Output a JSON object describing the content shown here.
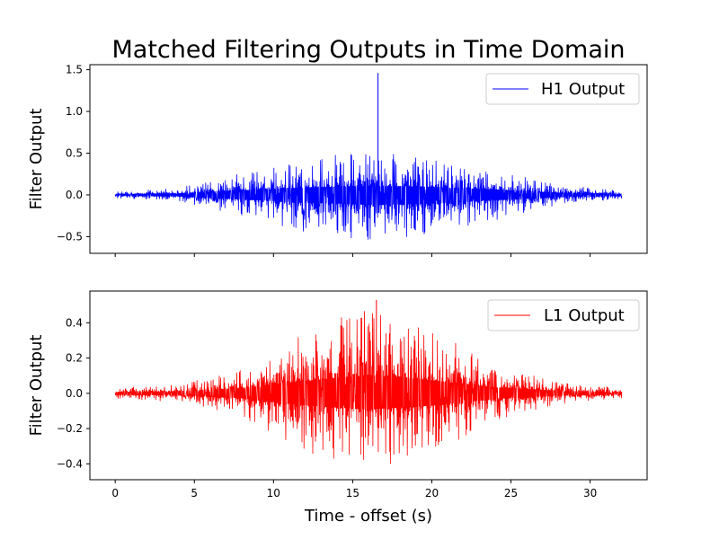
{
  "figure": {
    "title": "Matched Filtering Outputs in Time Domain",
    "xlabel": "Time - offset (s)"
  },
  "chart_data": [
    {
      "type": "line",
      "ylabel": "Filter Output",
      "xlim": [
        -1.6,
        33.6
      ],
      "ylim": [
        -0.7,
        1.56
      ],
      "yticks": [
        -0.5,
        0.0,
        0.5,
        1.0,
        1.5
      ],
      "ytick_labels": [
        "−0.5",
        "0.0",
        "0.5",
        "1.0",
        "1.5"
      ],
      "xticks": [
        0,
        5,
        10,
        15,
        20,
        25,
        30
      ],
      "xtick_labels": [],
      "grid": false,
      "legend_position": "upper-right",
      "series": [
        {
          "name": "H1 Output",
          "color": "#0000ff",
          "x_range": [
            0,
            32
          ],
          "envelope_peak_time": 16,
          "envelope": {
            "t": [
              0,
              4,
              8,
              10,
              12,
              14,
              16,
              18,
              20,
              22,
              24,
              28,
              32
            ],
            "upper": [
              0.04,
              0.08,
              0.26,
              0.35,
              0.42,
              0.48,
              0.5,
              0.5,
              0.46,
              0.38,
              0.3,
              0.12,
              0.05
            ],
            "lower": [
              -0.04,
              -0.08,
              -0.25,
              -0.35,
              -0.45,
              -0.5,
              -0.58,
              -0.55,
              -0.5,
              -0.4,
              -0.3,
              -0.12,
              -0.05
            ]
          },
          "spike": {
            "t": 16.6,
            "value": 1.46
          }
        }
      ]
    },
    {
      "type": "line",
      "ylabel": "Filter Output",
      "xlim": [
        -1.6,
        33.6
      ],
      "ylim": [
        -0.49,
        0.58
      ],
      "yticks": [
        -0.4,
        -0.2,
        0.0,
        0.2,
        0.4
      ],
      "ytick_labels": [
        "−0.4",
        "−0.2",
        "0.0",
        "0.2",
        "0.4"
      ],
      "xticks": [
        0,
        5,
        10,
        15,
        20,
        25,
        30
      ],
      "xtick_labels": [
        "0",
        "5",
        "10",
        "15",
        "20",
        "25",
        "30"
      ],
      "grid": false,
      "legend_position": "upper-right",
      "series": [
        {
          "name": "L1 Output",
          "color": "#ff0000",
          "x_range": [
            0,
            32
          ],
          "envelope_peak_time": 16,
          "envelope": {
            "t": [
              0,
              4,
              8,
              10,
              12,
              14,
              16,
              18,
              20,
              22,
              24,
              28,
              32
            ],
            "upper": [
              0.03,
              0.05,
              0.14,
              0.25,
              0.34,
              0.42,
              0.5,
              0.44,
              0.36,
              0.26,
              0.16,
              0.06,
              0.03
            ],
            "lower": [
              -0.03,
              -0.05,
              -0.13,
              -0.24,
              -0.33,
              -0.4,
              -0.44,
              -0.4,
              -0.34,
              -0.25,
              -0.15,
              -0.06,
              -0.03
            ]
          },
          "spike": {
            "t": 16.5,
            "value": 0.53
          }
        }
      ]
    }
  ]
}
